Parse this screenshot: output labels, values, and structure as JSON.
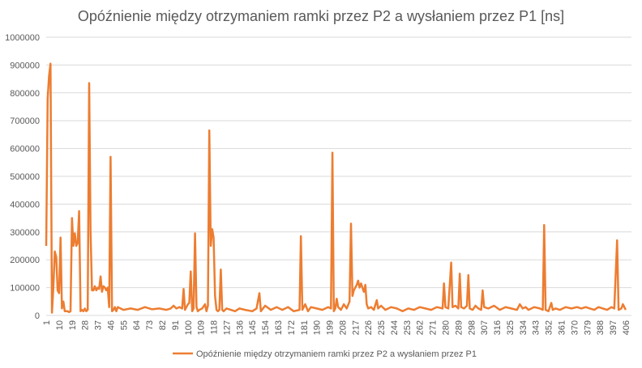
{
  "chart_data": {
    "type": "line",
    "title": "Opóźnienie między otrzymaniem ramki przez P2 a wysłaniem przez P1 [ns]",
    "xlabel": "",
    "ylabel": "",
    "ylim": [
      0,
      1000000
    ],
    "yticks": [
      "0",
      "100000",
      "200000",
      "300000",
      "400000",
      "500000",
      "600000",
      "700000",
      "800000",
      "900000",
      "1000000"
    ],
    "xticks": [
      1,
      10,
      19,
      28,
      37,
      46,
      55,
      64,
      73,
      82,
      91,
      100,
      109,
      118,
      127,
      136,
      145,
      154,
      163,
      172,
      181,
      190,
      199,
      208,
      217,
      226,
      235,
      244,
      253,
      262,
      271,
      280,
      289,
      298,
      307,
      316,
      325,
      334,
      343,
      352,
      361,
      370,
      379,
      388,
      397,
      406
    ],
    "grid": true,
    "legend_position": "bottom",
    "color": "#ED7D31",
    "series": [
      {
        "name": "Opóźnienie między otrzymaniem ramki przez P2 a wysłaniem przez P1",
        "points": [
          [
            1,
            250000
          ],
          [
            2,
            780000
          ],
          [
            3,
            860000
          ],
          [
            4,
            905000
          ],
          [
            5,
            10000
          ],
          [
            6,
            100000
          ],
          [
            7,
            230000
          ],
          [
            8,
            210000
          ],
          [
            9,
            90000
          ],
          [
            10,
            80000
          ],
          [
            11,
            280000
          ],
          [
            12,
            25000
          ],
          [
            13,
            50000
          ],
          [
            14,
            15000
          ],
          [
            15,
            15000
          ],
          [
            16,
            15000
          ],
          [
            17,
            12000
          ],
          [
            18,
            15000
          ],
          [
            19,
            350000
          ],
          [
            20,
            250000
          ],
          [
            21,
            295000
          ],
          [
            22,
            250000
          ],
          [
            23,
            260000
          ],
          [
            24,
            375000
          ],
          [
            25,
            15000
          ],
          [
            26,
            20000
          ],
          [
            27,
            15000
          ],
          [
            28,
            25000
          ],
          [
            29,
            15000
          ],
          [
            30,
            20000
          ],
          [
            31,
            835000
          ],
          [
            32,
            300000
          ],
          [
            33,
            90000
          ],
          [
            34,
            90000
          ],
          [
            35,
            105000
          ],
          [
            36,
            90000
          ],
          [
            37,
            100000
          ],
          [
            38,
            95000
          ],
          [
            39,
            140000
          ],
          [
            40,
            85000
          ],
          [
            41,
            105000
          ],
          [
            42,
            100000
          ],
          [
            43,
            90000
          ],
          [
            44,
            100000
          ],
          [
            45,
            30000
          ],
          [
            46,
            570000
          ],
          [
            47,
            15000
          ],
          [
            48,
            20000
          ],
          [
            49,
            30000
          ],
          [
            50,
            15000
          ],
          [
            51,
            30000
          ],
          [
            55,
            20000
          ],
          [
            60,
            25000
          ],
          [
            65,
            20000
          ],
          [
            70,
            30000
          ],
          [
            75,
            22000
          ],
          [
            80,
            25000
          ],
          [
            85,
            20000
          ],
          [
            88,
            25000
          ],
          [
            90,
            35000
          ],
          [
            92,
            25000
          ],
          [
            94,
            30000
          ],
          [
            96,
            25000
          ],
          [
            97,
            95000
          ],
          [
            98,
            20000
          ],
          [
            100,
            40000
          ],
          [
            101,
            45000
          ],
          [
            102,
            158000
          ],
          [
            103,
            15000
          ],
          [
            104,
            25000
          ],
          [
            105,
            295000
          ],
          [
            106,
            30000
          ],
          [
            107,
            15000
          ],
          [
            108,
            20000
          ],
          [
            110,
            25000
          ],
          [
            112,
            40000
          ],
          [
            113,
            15000
          ],
          [
            114,
            35000
          ],
          [
            115,
            665000
          ],
          [
            116,
            250000
          ],
          [
            117,
            310000
          ],
          [
            118,
            280000
          ],
          [
            119,
            70000
          ],
          [
            120,
            20000
          ],
          [
            121,
            15000
          ],
          [
            122,
            20000
          ],
          [
            123,
            165000
          ],
          [
            124,
            20000
          ],
          [
            125,
            15000
          ],
          [
            127,
            25000
          ],
          [
            130,
            20000
          ],
          [
            133,
            15000
          ],
          [
            136,
            25000
          ],
          [
            140,
            20000
          ],
          [
            145,
            15000
          ],
          [
            148,
            25000
          ],
          [
            150,
            80000
          ],
          [
            151,
            15000
          ],
          [
            154,
            35000
          ],
          [
            158,
            20000
          ],
          [
            162,
            30000
          ],
          [
            166,
            20000
          ],
          [
            170,
            30000
          ],
          [
            174,
            15000
          ],
          [
            178,
            20000
          ],
          [
            179,
            285000
          ],
          [
            180,
            20000
          ],
          [
            182,
            40000
          ],
          [
            184,
            15000
          ],
          [
            186,
            30000
          ],
          [
            190,
            25000
          ],
          [
            194,
            20000
          ],
          [
            198,
            30000
          ],
          [
            200,
            25000
          ],
          [
            201,
            585000
          ],
          [
            202,
            15000
          ],
          [
            203,
            25000
          ],
          [
            204,
            60000
          ],
          [
            205,
            30000
          ],
          [
            207,
            20000
          ],
          [
            209,
            40000
          ],
          [
            211,
            25000
          ],
          [
            213,
            50000
          ],
          [
            214,
            330000
          ],
          [
            215,
            70000
          ],
          [
            216,
            90000
          ],
          [
            217,
            100000
          ],
          [
            218,
            110000
          ],
          [
            219,
            125000
          ],
          [
            220,
            100000
          ],
          [
            221,
            115000
          ],
          [
            222,
            100000
          ],
          [
            223,
            85000
          ],
          [
            224,
            110000
          ],
          [
            225,
            40000
          ],
          [
            226,
            25000
          ],
          [
            228,
            30000
          ],
          [
            230,
            20000
          ],
          [
            232,
            55000
          ],
          [
            233,
            25000
          ],
          [
            235,
            35000
          ],
          [
            238,
            20000
          ],
          [
            242,
            30000
          ],
          [
            246,
            25000
          ],
          [
            250,
            15000
          ],
          [
            254,
            25000
          ],
          [
            258,
            20000
          ],
          [
            262,
            30000
          ],
          [
            266,
            25000
          ],
          [
            270,
            20000
          ],
          [
            274,
            30000
          ],
          [
            278,
            25000
          ],
          [
            279,
            115000
          ],
          [
            280,
            30000
          ],
          [
            282,
            25000
          ],
          [
            284,
            190000
          ],
          [
            285,
            30000
          ],
          [
            287,
            35000
          ],
          [
            289,
            25000
          ],
          [
            290,
            150000
          ],
          [
            291,
            30000
          ],
          [
            293,
            25000
          ],
          [
            295,
            35000
          ],
          [
            296,
            145000
          ],
          [
            297,
            25000
          ],
          [
            299,
            20000
          ],
          [
            301,
            35000
          ],
          [
            303,
            25000
          ],
          [
            305,
            20000
          ],
          [
            306,
            90000
          ],
          [
            307,
            30000
          ],
          [
            310,
            25000
          ],
          [
            314,
            35000
          ],
          [
            318,
            20000
          ],
          [
            322,
            30000
          ],
          [
            326,
            25000
          ],
          [
            330,
            20000
          ],
          [
            332,
            40000
          ],
          [
            334,
            25000
          ],
          [
            336,
            30000
          ],
          [
            338,
            20000
          ],
          [
            342,
            30000
          ],
          [
            346,
            25000
          ],
          [
            348,
            20000
          ],
          [
            349,
            325000
          ],
          [
            350,
            20000
          ],
          [
            352,
            15000
          ],
          [
            354,
            45000
          ],
          [
            355,
            20000
          ],
          [
            357,
            25000
          ],
          [
            360,
            20000
          ],
          [
            364,
            30000
          ],
          [
            368,
            25000
          ],
          [
            372,
            30000
          ],
          [
            375,
            25000
          ],
          [
            378,
            30000
          ],
          [
            381,
            25000
          ],
          [
            384,
            20000
          ],
          [
            387,
            30000
          ],
          [
            390,
            25000
          ],
          [
            393,
            20000
          ],
          [
            396,
            30000
          ],
          [
            398,
            25000
          ],
          [
            400,
            270000
          ],
          [
            401,
            20000
          ],
          [
            403,
            25000
          ],
          [
            404,
            40000
          ],
          [
            405,
            30000
          ],
          [
            406,
            20000
          ]
        ]
      }
    ]
  }
}
